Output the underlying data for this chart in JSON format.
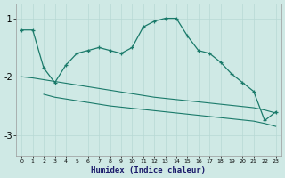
{
  "xlabel": "Humidex (Indice chaleur)",
  "ylabel": "",
  "bg_color": "#cfe9e5",
  "grid_color": "#b8d8d4",
  "line_color": "#1a7a6a",
  "xlim": [
    -0.5,
    23.5
  ],
  "ylim": [
    -3.35,
    -0.75
  ],
  "yticks": [
    -3,
    -2,
    -1
  ],
  "xticks": [
    0,
    1,
    2,
    3,
    4,
    5,
    6,
    7,
    8,
    9,
    10,
    11,
    12,
    13,
    14,
    15,
    16,
    17,
    18,
    19,
    20,
    21,
    22,
    23
  ],
  "line1_x": [
    0,
    1,
    2,
    3,
    4,
    5,
    6,
    7,
    8,
    9,
    10,
    11,
    12,
    13,
    14,
    15,
    16,
    17,
    18,
    19,
    20,
    21,
    22,
    23
  ],
  "line1_y": [
    -1.2,
    -1.2,
    -1.85,
    -2.1,
    -1.8,
    -1.6,
    -1.55,
    -1.5,
    -1.55,
    -1.6,
    -1.5,
    -1.15,
    -1.05,
    -1.0,
    -1.0,
    -1.3,
    -1.55,
    -1.6,
    -1.75,
    -1.95,
    -2.1,
    -2.25,
    -2.75,
    -2.6
  ],
  "line2_x": [
    0,
    1,
    2,
    3,
    4,
    5,
    6,
    7,
    8,
    9,
    10,
    11,
    12,
    13,
    14,
    15,
    16,
    17,
    18,
    19,
    20,
    21,
    22,
    23
  ],
  "line2_y": [
    -2.0,
    -2.02,
    -2.05,
    -2.08,
    -2.11,
    -2.14,
    -2.17,
    -2.2,
    -2.23,
    -2.26,
    -2.29,
    -2.32,
    -2.35,
    -2.37,
    -2.39,
    -2.41,
    -2.43,
    -2.45,
    -2.47,
    -2.49,
    -2.51,
    -2.53,
    -2.57,
    -2.62
  ],
  "line3_x": [
    2,
    3,
    4,
    5,
    6,
    7,
    8,
    9,
    10,
    11,
    12,
    13,
    14,
    15,
    16,
    17,
    18,
    19,
    20,
    21,
    22,
    23
  ],
  "line3_y": [
    -2.3,
    -2.35,
    -2.38,
    -2.41,
    -2.44,
    -2.47,
    -2.5,
    -2.52,
    -2.54,
    -2.56,
    -2.58,
    -2.6,
    -2.62,
    -2.64,
    -2.66,
    -2.68,
    -2.7,
    -2.72,
    -2.74,
    -2.76,
    -2.8,
    -2.85
  ]
}
